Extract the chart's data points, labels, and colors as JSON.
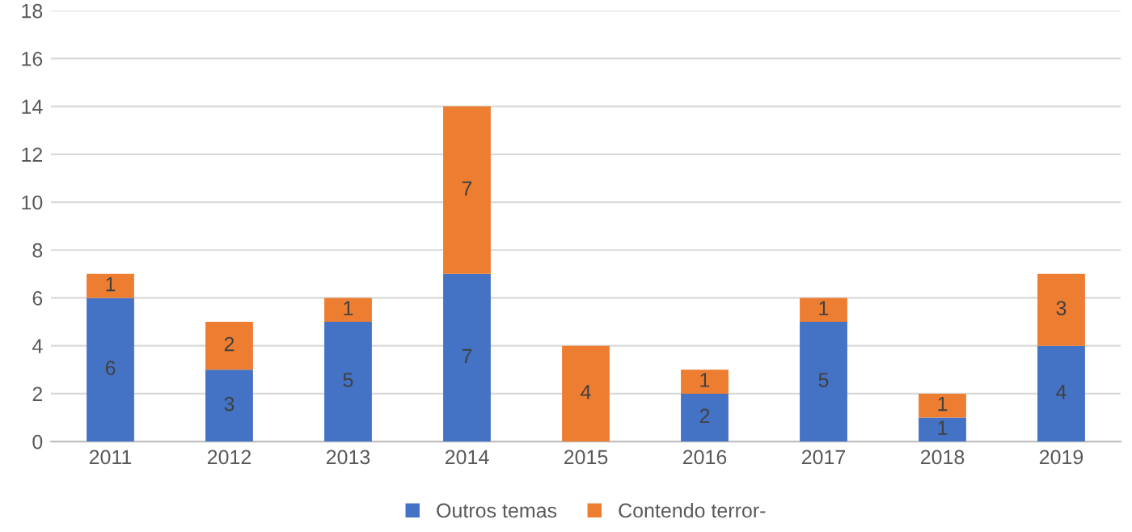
{
  "chart_data": {
    "type": "bar",
    "stacked": true,
    "categories": [
      "2011",
      "2012",
      "2013",
      "2014",
      "2015",
      "2016",
      "2017",
      "2018",
      "2019"
    ],
    "series": [
      {
        "name": "Outros temas",
        "color": "#4472c4",
        "values": [
          6,
          3,
          5,
          7,
          0,
          2,
          5,
          1,
          4
        ],
        "value_labels": [
          "6",
          "3",
          "5",
          "7",
          null,
          "2",
          "5",
          "1",
          "4"
        ]
      },
      {
        "name": "Contendo terror-",
        "color": "#ed7d31",
        "values": [
          1,
          2,
          1,
          7,
          4,
          1,
          1,
          1,
          3
        ],
        "value_labels": [
          "1",
          "2",
          "1",
          "7",
          "4",
          "1",
          "1",
          "1",
          "3"
        ]
      }
    ],
    "ylim": [
      0,
      18
    ],
    "yticks": [
      0,
      2,
      4,
      6,
      8,
      10,
      12,
      14,
      16,
      18
    ],
    "grid": "y",
    "legend": "bottom"
  }
}
